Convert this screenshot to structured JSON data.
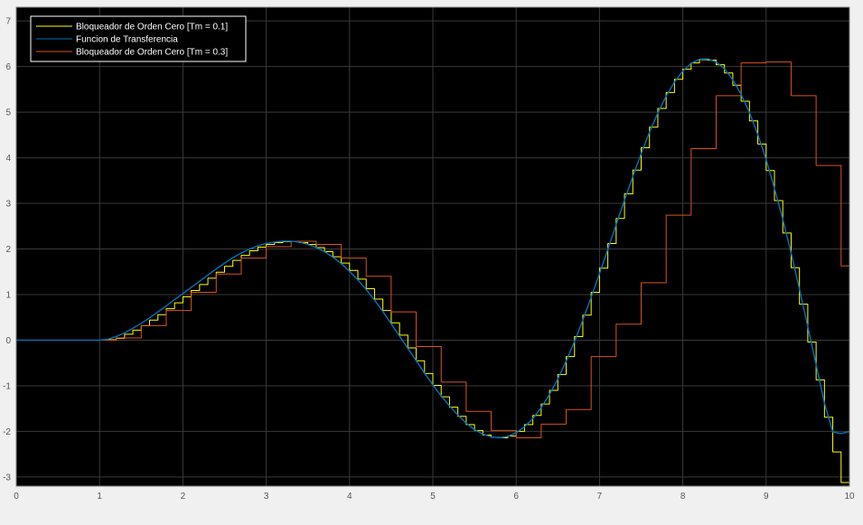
{
  "chart_data": {
    "type": "line",
    "title": "",
    "xlabel": "",
    "ylabel": "",
    "xlim": [
      0,
      10
    ],
    "ylim": [
      -3.2,
      7.3
    ],
    "grid": true,
    "legend_position": "top-left",
    "background": "#000000",
    "axes_color": "#808080",
    "x_ticks": [
      0,
      1,
      2,
      3,
      4,
      5,
      6,
      7,
      8,
      9,
      10
    ],
    "y_ticks": [
      -3,
      -2,
      -1,
      0,
      1,
      2,
      3,
      4,
      5,
      6,
      7
    ],
    "series": [
      {
        "name": "Bloqueador de Orden Cero [Tm = 0.1]",
        "color": "#ffff00",
        "sample_time": 0.1,
        "x": [
          0,
          0.1,
          0.2,
          0.3,
          0.4,
          0.5,
          0.6,
          0.7,
          0.8,
          0.9,
          1.0,
          1.1,
          1.2,
          1.3,
          1.4,
          1.5,
          1.6,
          1.7,
          1.8,
          1.9,
          2.0,
          2.1,
          2.2,
          2.3,
          2.4,
          2.5,
          2.6,
          2.7,
          2.8,
          2.9,
          3.0,
          3.1,
          3.2,
          3.3,
          3.4,
          3.5,
          3.6,
          3.7,
          3.8,
          3.9,
          4.0,
          4.1,
          4.2,
          4.3,
          4.4,
          4.5,
          4.6,
          4.7,
          4.8,
          4.9,
          5.0,
          5.1,
          5.2,
          5.3,
          5.4,
          5.5,
          5.6,
          5.7,
          5.8,
          5.9,
          6.0,
          6.1,
          6.2,
          6.3,
          6.4,
          6.5,
          6.6,
          6.7,
          6.8,
          6.9,
          7.0,
          7.1,
          7.2,
          7.3,
          7.4,
          7.5,
          7.6,
          7.7,
          7.8,
          7.9,
          8.0,
          8.1,
          8.2,
          8.3,
          8.4,
          8.5,
          8.6,
          8.7,
          8.8,
          8.9,
          9.0,
          9.1,
          9.2,
          9.3,
          9.4,
          9.5,
          9.6,
          9.7,
          9.8,
          9.9,
          10.0
        ],
        "y": [
          0,
          0,
          0,
          0,
          0,
          0,
          0,
          0,
          0,
          0,
          0,
          0.01,
          0.04,
          0.13,
          0.22,
          0.32,
          0.44,
          0.56,
          0.69,
          0.82,
          0.95,
          1.09,
          1.22,
          1.36,
          1.49,
          1.62,
          1.75,
          1.86,
          1.96,
          2.04,
          2.1,
          2.14,
          2.16,
          2.17,
          2.14,
          2.1,
          2.03,
          1.94,
          1.83,
          1.69,
          1.53,
          1.34,
          1.13,
          0.9,
          0.65,
          0.38,
          0.11,
          -0.17,
          -0.45,
          -0.73,
          -0.99,
          -1.24,
          -1.47,
          -1.67,
          -1.85,
          -1.98,
          -2.08,
          -2.13,
          -2.14,
          -2.1,
          -2.0,
          -1.85,
          -1.65,
          -1.4,
          -1.1,
          -0.75,
          -0.36,
          0.08,
          0.55,
          1.05,
          1.58,
          2.12,
          2.67,
          3.21,
          3.73,
          4.22,
          4.67,
          5.08,
          5.43,
          5.72,
          5.94,
          6.08,
          6.15,
          6.14,
          6.04,
          5.86,
          5.59,
          5.24,
          4.81,
          4.3,
          3.72,
          3.06,
          2.35,
          1.59,
          0.79,
          -0.04,
          -0.87,
          -1.69,
          -2.45,
          -3.12,
          -1.98
        ]
      },
      {
        "name": "Funcion de Transferencia",
        "color": "#0072bd",
        "x": [
          0,
          1.0,
          1.1,
          1.2,
          1.3,
          1.4,
          1.5,
          1.6,
          1.7,
          1.8,
          1.9,
          2.0,
          2.1,
          2.2,
          2.3,
          2.4,
          2.5,
          2.6,
          2.7,
          2.8,
          2.9,
          3.0,
          3.1,
          3.2,
          3.3,
          3.4,
          3.5,
          3.6,
          3.7,
          3.8,
          3.9,
          4.0,
          4.1,
          4.2,
          4.3,
          4.4,
          4.5,
          4.6,
          4.7,
          4.8,
          4.9,
          5.0,
          5.1,
          5.2,
          5.3,
          5.4,
          5.5,
          5.6,
          5.7,
          5.8,
          5.9,
          6.0,
          6.1,
          6.2,
          6.3,
          6.4,
          6.5,
          6.6,
          6.7,
          6.8,
          6.9,
          7.0,
          7.1,
          7.2,
          7.3,
          7.4,
          7.5,
          7.6,
          7.7,
          7.8,
          7.9,
          8.0,
          8.1,
          8.2,
          8.3,
          8.4,
          8.5,
          8.6,
          8.7,
          8.8,
          8.9,
          9.0,
          9.1,
          9.2,
          9.3,
          9.4,
          9.5,
          9.6,
          9.7,
          9.8,
          9.9,
          10.0
        ],
        "y": [
          0,
          0,
          0.02,
          0.08,
          0.16,
          0.26,
          0.37,
          0.49,
          0.62,
          0.75,
          0.89,
          1.02,
          1.16,
          1.29,
          1.43,
          1.56,
          1.69,
          1.81,
          1.91,
          2.0,
          2.07,
          2.12,
          2.15,
          2.17,
          2.17,
          2.15,
          2.1,
          2.03,
          1.94,
          1.82,
          1.68,
          1.51,
          1.32,
          1.11,
          0.88,
          0.63,
          0.36,
          0.09,
          -0.18,
          -0.45,
          -0.72,
          -0.98,
          -1.22,
          -1.44,
          -1.64,
          -1.82,
          -1.96,
          -2.06,
          -2.12,
          -2.14,
          -2.11,
          -2.03,
          -1.9,
          -1.72,
          -1.48,
          -1.19,
          -0.85,
          -0.46,
          -0.03,
          0.44,
          0.94,
          1.46,
          1.99,
          2.53,
          3.07,
          3.59,
          4.09,
          4.56,
          4.98,
          5.35,
          5.66,
          5.9,
          6.07,
          6.16,
          6.17,
          6.1,
          5.95,
          5.71,
          5.39,
          4.99,
          4.51,
          3.96,
          3.33,
          2.65,
          1.91,
          1.12,
          0.3,
          -0.54,
          -1.38,
          -2.01,
          -2.05,
          -2.0
        ]
      },
      {
        "name": "Bloqueador de Orden Cero [Tm = 0.3]",
        "color": "#d95319",
        "sample_time": 0.3,
        "x": [
          0,
          0.3,
          0.6,
          0.9,
          1.2,
          1.5,
          1.8,
          2.1,
          2.4,
          2.7,
          3.0,
          3.3,
          3.6,
          3.9,
          4.2,
          4.5,
          4.8,
          5.1,
          5.4,
          5.7,
          6.0,
          6.3,
          6.6,
          6.9,
          7.2,
          7.5,
          7.8,
          8.1,
          8.4,
          8.7,
          9.0,
          9.3,
          9.6,
          9.9,
          10.0
        ],
        "y": [
          0,
          0,
          0,
          0,
          0.05,
          0.32,
          0.65,
          1.05,
          1.45,
          1.8,
          2.05,
          2.17,
          2.1,
          1.8,
          1.4,
          0.62,
          -0.14,
          -0.92,
          -1.56,
          -1.98,
          -2.14,
          -1.84,
          -1.52,
          -0.36,
          0.35,
          1.26,
          2.74,
          4.2,
          5.36,
          6.08,
          6.1,
          5.36,
          3.83,
          1.63,
          -1.1
        ]
      }
    ]
  }
}
